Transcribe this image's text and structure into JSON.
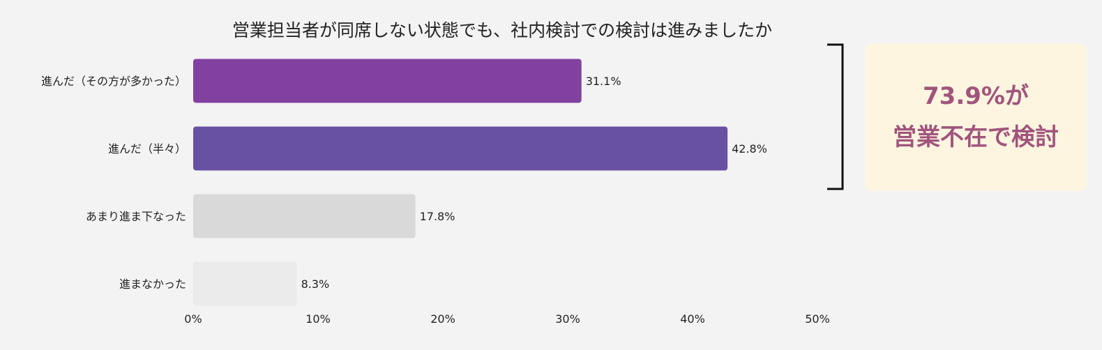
{
  "chart_data": {
    "type": "bar",
    "orientation": "horizontal",
    "title": "営業担当者が同席しない状態でも、社内検討での検討は進みましたか",
    "categories": [
      "進んだ（その方が多かった）",
      "進んだ（半々）",
      "あまり進ま下なった",
      "進まなかった"
    ],
    "values": [
      31.1,
      42.8,
      17.8,
      8.3
    ],
    "value_labels": [
      "31.1%",
      "42.8%",
      "17.8%",
      "8.3%"
    ],
    "bar_colors": [
      "#8241a0",
      "#6851a3",
      "#d9d9d9",
      "#ebebeb"
    ],
    "xlim": [
      0,
      50
    ],
    "xticks": [
      0,
      10,
      20,
      30,
      40,
      50
    ],
    "xtick_labels": [
      "0%",
      "10%",
      "20%",
      "30%",
      "40%",
      "50%"
    ],
    "xlabel": "",
    "ylabel": "",
    "grid": false,
    "legend": "none"
  },
  "callout": {
    "line1": "73.9%が",
    "line2": "営業不在で検討",
    "text_color": "#a0547c",
    "background": "#fdf5e0"
  }
}
